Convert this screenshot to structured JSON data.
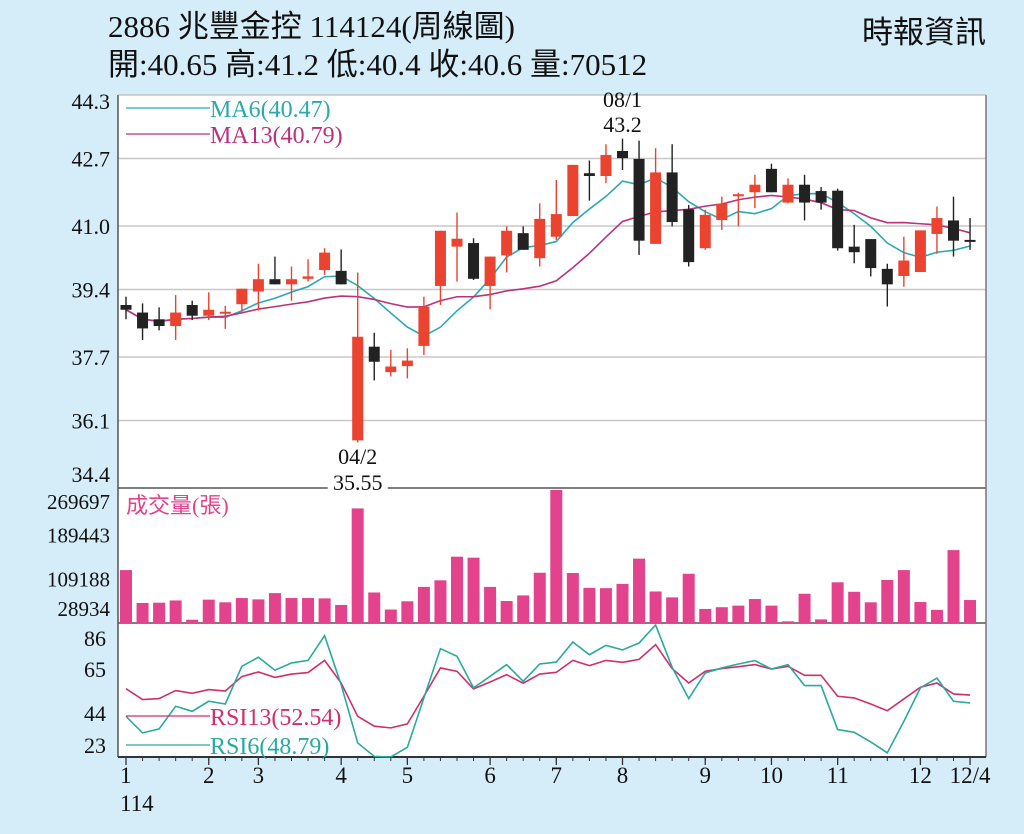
{
  "header": {
    "title": "2886  兆豐金控 114124(周線圖)",
    "ohlc_line": "開:40.65 高:41.2 低:40.4 收:40.6 量:70512",
    "source": "時報資訊"
  },
  "colors": {
    "background": "#d5ecf9",
    "up": "#ea4330",
    "down": "#222222",
    "ma6": "#2aa9b3",
    "ma13": "#b8327e",
    "volume": "#e2438c",
    "rsi13": "#cf2f6c",
    "rsi6": "#2aa9a0"
  },
  "chart_data": [
    {
      "type": "candlestick",
      "title": "2886 兆豐金控 週線",
      "ylim": [
        34.4,
        44.3
      ],
      "yticks": [
        "44.3",
        "42.7",
        "41.0",
        "39.4",
        "37.7",
        "36.1",
        "34.4"
      ],
      "legend": [
        {
          "name": "MA6",
          "label": "MA6(40.47)",
          "period": 6
        },
        {
          "name": "MA13",
          "label": "MA13(40.79)",
          "period": 13
        }
      ],
      "annotations": [
        {
          "candle": 31,
          "date": "08/1",
          "value": "43.2",
          "position": "above"
        },
        {
          "candle": 15,
          "date": "04/2",
          "value": "35.55",
          "position": "below"
        }
      ],
      "candles": [
        [
          39.01,
          39.22,
          38.65,
          38.89
        ],
        [
          38.82,
          39.05,
          38.13,
          38.42
        ],
        [
          38.65,
          38.95,
          38.37,
          38.48
        ],
        [
          38.48,
          39.26,
          38.13,
          38.82
        ],
        [
          39.01,
          39.12,
          38.63,
          38.74
        ],
        [
          38.74,
          39.33,
          38.63,
          38.89
        ],
        [
          38.79,
          38.99,
          38.41,
          38.84
        ],
        [
          39.03,
          39.42,
          38.84,
          39.42
        ],
        [
          39.35,
          40.05,
          38.87,
          39.66
        ],
        [
          39.66,
          40.23,
          39.53,
          39.53
        ],
        [
          39.53,
          39.98,
          39.12,
          39.66
        ],
        [
          39.67,
          40.16,
          39.6,
          39.73
        ],
        [
          39.89,
          40.44,
          39.77,
          40.33
        ],
        [
          39.87,
          40.41,
          39.53,
          39.53
        ],
        [
          35.6,
          39.83,
          35.55,
          38.21
        ],
        [
          37.96,
          38.31,
          37.11,
          37.58
        ],
        [
          37.32,
          37.88,
          37.21,
          37.46
        ],
        [
          37.47,
          37.92,
          37.16,
          37.61
        ],
        [
          37.98,
          39.22,
          37.75,
          38.97
        ],
        [
          39.49,
          40.88,
          39.01,
          40.88
        ],
        [
          40.48,
          41.34,
          39.6,
          40.68
        ],
        [
          40.57,
          40.69,
          39.64,
          39.67
        ],
        [
          39.49,
          40.23,
          38.9,
          40.23
        ],
        [
          40.26,
          40.99,
          39.83,
          40.88
        ],
        [
          40.82,
          40.99,
          40.4,
          40.4
        ],
        [
          40.19,
          41.57,
          39.98,
          41.18
        ],
        [
          40.73,
          42.16,
          40.65,
          41.3
        ],
        [
          41.25,
          42.54,
          41.25,
          42.54
        ],
        [
          42.33,
          42.65,
          41.64,
          42.26
        ],
        [
          42.26,
          43.06,
          42.08,
          42.79
        ],
        [
          42.89,
          43.2,
          42.41,
          42.71
        ],
        [
          42.69,
          43.15,
          40.27,
          40.63
        ],
        [
          40.55,
          42.96,
          40.55,
          42.35
        ],
        [
          42.35,
          43.06,
          40.99,
          41.1
        ],
        [
          41.42,
          41.53,
          39.98,
          40.09
        ],
        [
          40.44,
          41.41,
          40.4,
          41.28
        ],
        [
          41.15,
          41.74,
          40.9,
          41.56
        ],
        [
          41.79,
          41.84,
          40.99,
          41.8
        ],
        [
          41.85,
          42.29,
          41.45,
          42.04
        ],
        [
          42.44,
          42.57,
          41.85,
          41.85
        ],
        [
          41.59,
          42.2,
          41.57,
          42.04
        ],
        [
          42.04,
          42.29,
          41.14,
          41.59
        ],
        [
          41.88,
          41.98,
          41.41,
          41.59
        ],
        [
          41.89,
          41.94,
          40.38,
          40.44
        ],
        [
          40.48,
          41.03,
          40.06,
          40.34
        ],
        [
          40.67,
          40.67,
          39.73,
          39.94
        ],
        [
          39.92,
          40.05,
          38.97,
          39.53
        ],
        [
          39.74,
          40.73,
          39.47,
          40.13
        ],
        [
          39.84,
          40.89,
          39.84,
          40.89
        ],
        [
          40.8,
          41.49,
          40.3,
          41.2
        ],
        [
          41.14,
          41.74,
          40.23,
          40.63
        ],
        [
          40.65,
          41.2,
          40.4,
          40.6
        ]
      ]
    },
    {
      "type": "bar",
      "title": "成交量(張)",
      "ylim": [
        28934,
        269697
      ],
      "yticks": [
        "269697",
        "189443",
        "109188",
        "28934"
      ],
      "values": [
        124700,
        65140,
        65700,
        69770,
        34870,
        71200,
        66400,
        74100,
        71700,
        83000,
        74100,
        74100,
        73500,
        61600,
        236400,
        84200,
        53300,
        68200,
        94300,
        106200,
        149000,
        147200,
        94300,
        68700,
        78900,
        119900,
        269697,
        119500,
        92500,
        92000,
        99700,
        145400,
        86000,
        75300,
        118100,
        54400,
        57500,
        60400,
        72300,
        60400,
        31900,
        81900,
        35500,
        102600,
        85400,
        66400,
        106800,
        124700,
        66900,
        52700,
        160900,
        70512
      ]
    },
    {
      "type": "line",
      "ylim": [
        23,
        86
      ],
      "yticks": [
        "86",
        "65",
        "44",
        "23"
      ],
      "series": [
        {
          "name": "RSI13",
          "label": "RSI13(52.54)",
          "values": [
            55.6,
            50.4,
            50.9,
            54.7,
            53.4,
            55.2,
            54.5,
            61.4,
            63.6,
            61.0,
            62.6,
            63.3,
            69.1,
            58.3,
            42.4,
            37.7,
            36.9,
            38.8,
            52.0,
            65.5,
            63.9,
            55.5,
            58.8,
            62.3,
            58.2,
            62.6,
            63.4,
            69.1,
            66.6,
            69.1,
            68.2,
            69.6,
            76.6,
            65.2,
            58.3,
            63.9,
            65.2,
            66.1,
            67.1,
            65.0,
            66.3,
            62.0,
            62.0,
            52.0,
            51.2,
            48.3,
            45.1,
            50.7,
            56.3,
            58.3,
            53.1,
            52.54
          ]
        },
        {
          "name": "RSI6",
          "label": "RSI6(48.79)",
          "values": [
            42.4,
            34.5,
            36.4,
            47.2,
            44.8,
            49.6,
            48.3,
            66.3,
            70.6,
            64.4,
            67.9,
            69.1,
            80.9,
            57.5,
            29.7,
            23.3,
            22.9,
            27.6,
            51.2,
            74.7,
            71.1,
            56.0,
            61.5,
            67.1,
            59.1,
            67.4,
            68.3,
            77.9,
            71.8,
            76.3,
            74.1,
            77.4,
            86.0,
            65.8,
            50.9,
            63.1,
            65.5,
            67.4,
            69.0,
            65.0,
            67.1,
            57.1,
            57.1,
            36.1,
            34.8,
            30.2,
            25.0,
            40.0,
            56.0,
            60.7,
            49.6,
            48.79
          ]
        }
      ]
    }
  ],
  "xaxis": {
    "ticks": [
      {
        "label": "1",
        "candle": 1,
        "sub": "114"
      },
      {
        "label": "2",
        "candle": 6
      },
      {
        "label": "3",
        "candle": 9
      },
      {
        "label": "4",
        "candle": 14
      },
      {
        "label": "5",
        "candle": 18
      },
      {
        "label": "6",
        "candle": 23
      },
      {
        "label": "7",
        "candle": 27
      },
      {
        "label": "8",
        "candle": 31
      },
      {
        "label": "9",
        "candle": 36
      },
      {
        "label": "10",
        "candle": 40
      },
      {
        "label": "11",
        "candle": 44
      },
      {
        "label": "12",
        "candle": 49
      },
      {
        "label": "12/4",
        "candle": 52
      }
    ]
  }
}
